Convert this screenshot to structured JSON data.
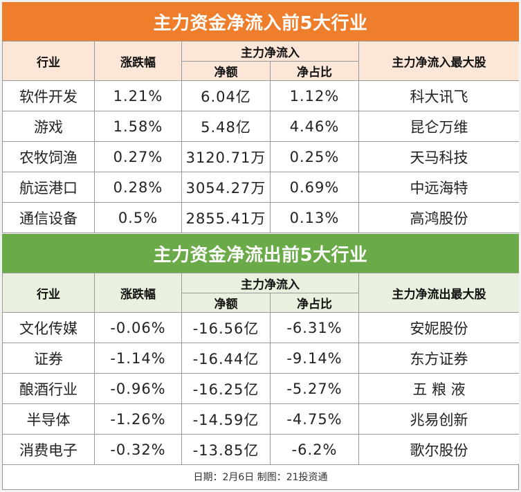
{
  "inflow": {
    "title": "主力资金净流入前5大行业",
    "headers": {
      "industry": "行业",
      "change": "涨跌幅",
      "net_group": "主力净流入",
      "net_amount": "净额",
      "net_ratio": "净占比",
      "top_stock": "主力净流入最大股"
    },
    "rows": [
      {
        "industry": "软件开发",
        "change": "1.21%",
        "amount": "6.04亿",
        "ratio": "1.12%",
        "stock": "科大讯飞"
      },
      {
        "industry": "游戏",
        "change": "1.58%",
        "amount": "5.48亿",
        "ratio": "4.46%",
        "stock": "昆仑万维"
      },
      {
        "industry": "农牧饲渔",
        "change": "0.27%",
        "amount": "3120.71万",
        "ratio": "0.25%",
        "stock": "天马科技"
      },
      {
        "industry": "航运港口",
        "change": "0.28%",
        "amount": "3054.27万",
        "ratio": "0.69%",
        "stock": "中远海特"
      },
      {
        "industry": "通信设备",
        "change": "0.5%",
        "amount": "2855.41万",
        "ratio": "0.13%",
        "stock": "高鸿股份"
      }
    ]
  },
  "outflow": {
    "title": "主力资金净流出前5大行业",
    "headers": {
      "industry": "行业",
      "change": "涨跌幅",
      "net_group": "主力净流入",
      "net_amount": "净额",
      "net_ratio": "净占比",
      "top_stock": "主力净流出最大股"
    },
    "rows": [
      {
        "industry": "文化传媒",
        "change": "-0.06%",
        "amount": "-16.56亿",
        "ratio": "-6.31%",
        "stock": "安妮股份"
      },
      {
        "industry": "证券",
        "change": "-1.14%",
        "amount": "-16.44亿",
        "ratio": "-9.14%",
        "stock": "东方证券"
      },
      {
        "industry": "酿酒行业",
        "change": "-0.96%",
        "amount": "-16.25亿",
        "ratio": "-5.27%",
        "stock": "五 粮 液"
      },
      {
        "industry": "半导体",
        "change": "-1.26%",
        "amount": "-14.59亿",
        "ratio": "-4.75%",
        "stock": "兆易创新"
      },
      {
        "industry": "消费电子",
        "change": "-0.32%",
        "amount": "-13.85亿",
        "ratio": "-6.2%",
        "stock": "歌尔股份"
      }
    ]
  },
  "footer": "日期：2月6日 制图：21投资通",
  "colors": {
    "inflow_header": "#ee7d2c",
    "inflow_subheader": "#fbe6d7",
    "outflow_header": "#6aaa48",
    "outflow_subheader": "#e7f1dd"
  }
}
